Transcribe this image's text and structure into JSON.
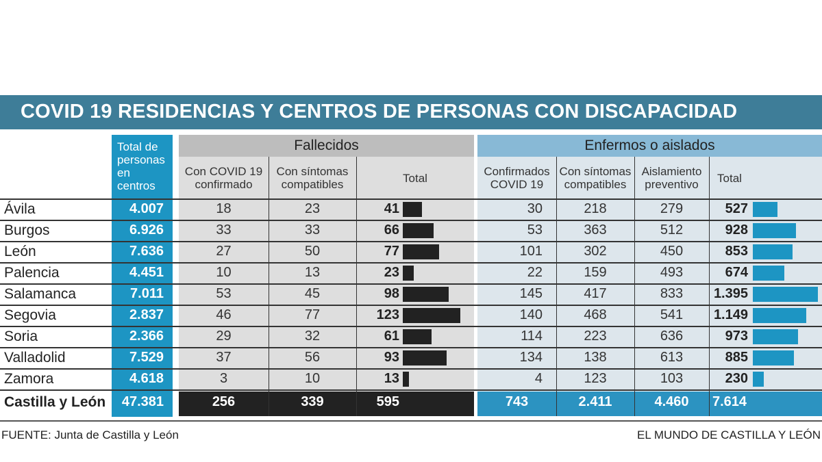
{
  "title": "COVID 19 RESIDENCIAS Y CENTROS DE PERSONAS CON DISCAPACIDAD",
  "headers": {
    "total_personas": "Total de personas en centros",
    "fallecidos": "Fallecidos",
    "enfermos": "Enfermos o aislados",
    "fallecidos_cols": [
      "Con COVID 19 confirmado",
      "Con síntomas compatibles",
      "Total"
    ],
    "enfermos_cols": [
      "Confirmados COVID 19",
      "Con síntomas compatibles",
      "Aislamiento preventivo",
      "Total"
    ]
  },
  "rows": [
    {
      "name": "Ávila",
      "total": "4.007",
      "f_conf": "18",
      "f_sint": "23",
      "f_total": "41",
      "e_conf": "30",
      "e_sint": "218",
      "e_aisl": "279",
      "e_total": "527"
    },
    {
      "name": "Burgos",
      "total": "6.926",
      "f_conf": "33",
      "f_sint": "33",
      "f_total": "66",
      "e_conf": "53",
      "e_sint": "363",
      "e_aisl": "512",
      "e_total": "928"
    },
    {
      "name": "León",
      "total": "7.636",
      "f_conf": "27",
      "f_sint": "50",
      "f_total": "77",
      "e_conf": "101",
      "e_sint": "302",
      "e_aisl": "450",
      "e_total": "853"
    },
    {
      "name": "Palencia",
      "total": "4.451",
      "f_conf": "10",
      "f_sint": "13",
      "f_total": "23",
      "e_conf": "22",
      "e_sint": "159",
      "e_aisl": "493",
      "e_total": "674"
    },
    {
      "name": "Salamanca",
      "total": "7.011",
      "f_conf": "53",
      "f_sint": "45",
      "f_total": "98",
      "e_conf": "145",
      "e_sint": "417",
      "e_aisl": "833",
      "e_total": "1.395"
    },
    {
      "name": "Segovia",
      "total": "2.837",
      "f_conf": "46",
      "f_sint": "77",
      "f_total": "123",
      "e_conf": "140",
      "e_sint": "468",
      "e_aisl": "541",
      "e_total": "1.149"
    },
    {
      "name": "Soria",
      "total": "2.366",
      "f_conf": "29",
      "f_sint": "32",
      "f_total": "61",
      "e_conf": "114",
      "e_sint": "223",
      "e_aisl": "636",
      "e_total": "973"
    },
    {
      "name": "Valladolid",
      "total": "7.529",
      "f_conf": "37",
      "f_sint": "56",
      "f_total": "93",
      "e_conf": "134",
      "e_sint": "138",
      "e_aisl": "613",
      "e_total": "885"
    },
    {
      "name": "Zamora",
      "total": "4.618",
      "f_conf": "3",
      "f_sint": "10",
      "f_total": "13",
      "e_conf": "4",
      "e_sint": "123",
      "e_aisl": "103",
      "e_total": "230"
    }
  ],
  "totals": {
    "name": "Castilla y León",
    "total": "47.381",
    "f_conf": "256",
    "f_sint": "339",
    "f_total": "595",
    "e_conf": "743",
    "e_sint": "2.411",
    "e_aisl": "4.460",
    "e_total": "7.614"
  },
  "bar_values": {
    "fallecidos_total": [
      41,
      66,
      77,
      23,
      98,
      123,
      61,
      93,
      13
    ],
    "enfermos_total": [
      527,
      928,
      853,
      674,
      1395,
      1149,
      973,
      885,
      230
    ]
  },
  "colors": {
    "title_bg": "#3e7d98",
    "accent_blue": "#1d95c3",
    "dark": "#222222"
  },
  "footer": {
    "source": "FUENTE:  Junta de Castilla y León",
    "brand": "EL MUNDO DE CASTILLA Y LEÓN"
  }
}
